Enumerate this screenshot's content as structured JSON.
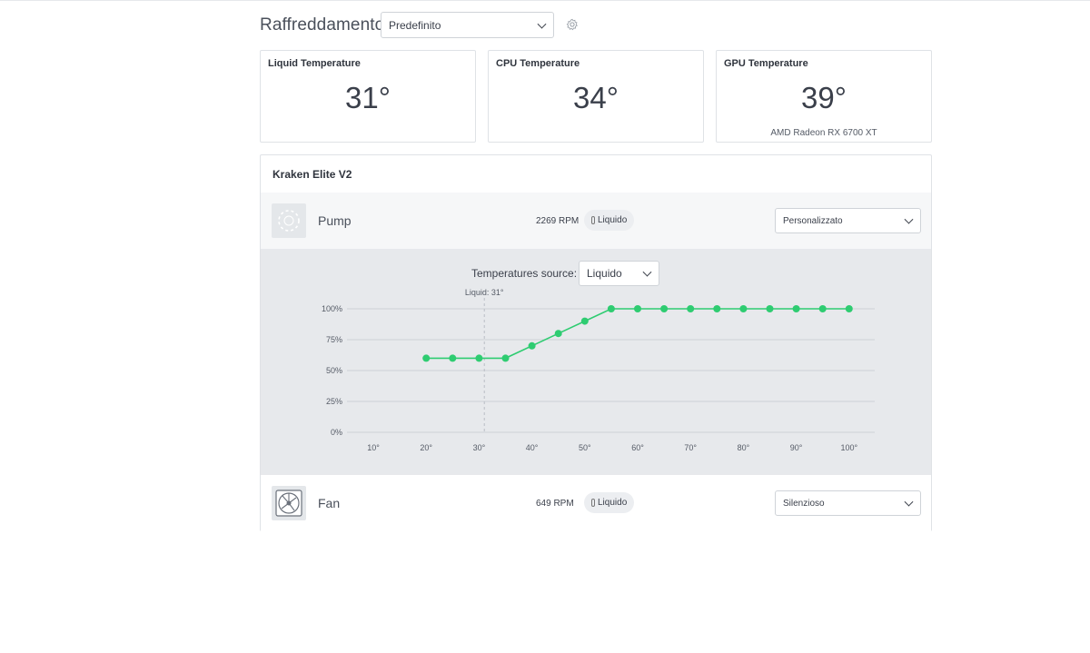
{
  "header": {
    "title": "Raffreddamento",
    "profile_value": "Predefinito"
  },
  "cards": [
    {
      "title": "Liquid Temperature",
      "value": "31°",
      "sub": ""
    },
    {
      "title": "CPU Temperature",
      "value": "34°",
      "sub": ""
    },
    {
      "title": "GPU Temperature",
      "value": "39°",
      "sub": "AMD Radeon RX 6700 XT"
    }
  ],
  "device": {
    "title": "Kraken Elite V2",
    "pump": {
      "label": "Pump",
      "rpm": "2269 RPM",
      "source_pill": "Liquido",
      "mode": "Personalizzato",
      "icon": "pump-icon"
    },
    "curve": {
      "source_label": "Temperatures source:",
      "source_value": "Liquido",
      "marker_label": "Liquid: 31°"
    },
    "fan": {
      "label": "Fan",
      "rpm": "649 RPM",
      "source_pill": "Liquido",
      "mode": "Silenzioso",
      "icon": "fan-icon"
    }
  },
  "chart_data": {
    "type": "line",
    "x": [
      20,
      25,
      30,
      35,
      40,
      45,
      50,
      55,
      60,
      65,
      70,
      75,
      80,
      85,
      90,
      95,
      100
    ],
    "series": [
      {
        "values": [
          60,
          60,
          60,
          60,
          70,
          80,
          90,
          100,
          100,
          100,
          100,
          100,
          100,
          100,
          100,
          100,
          100
        ]
      }
    ],
    "xlim": [
      10,
      100
    ],
    "ylim": [
      0,
      100
    ],
    "x_ticks": [
      "10°",
      "20°",
      "30°",
      "40°",
      "50°",
      "60°",
      "70°",
      "80°",
      "90°",
      "100°"
    ],
    "y_ticks": [
      "0%",
      "25%",
      "50%",
      "75%",
      "100%"
    ],
    "marker_x": 31,
    "grid": true,
    "line_color": "#2ecc71"
  },
  "colors": {
    "accent": "#2ecc71",
    "panel_bg": "#e7e9ec"
  }
}
